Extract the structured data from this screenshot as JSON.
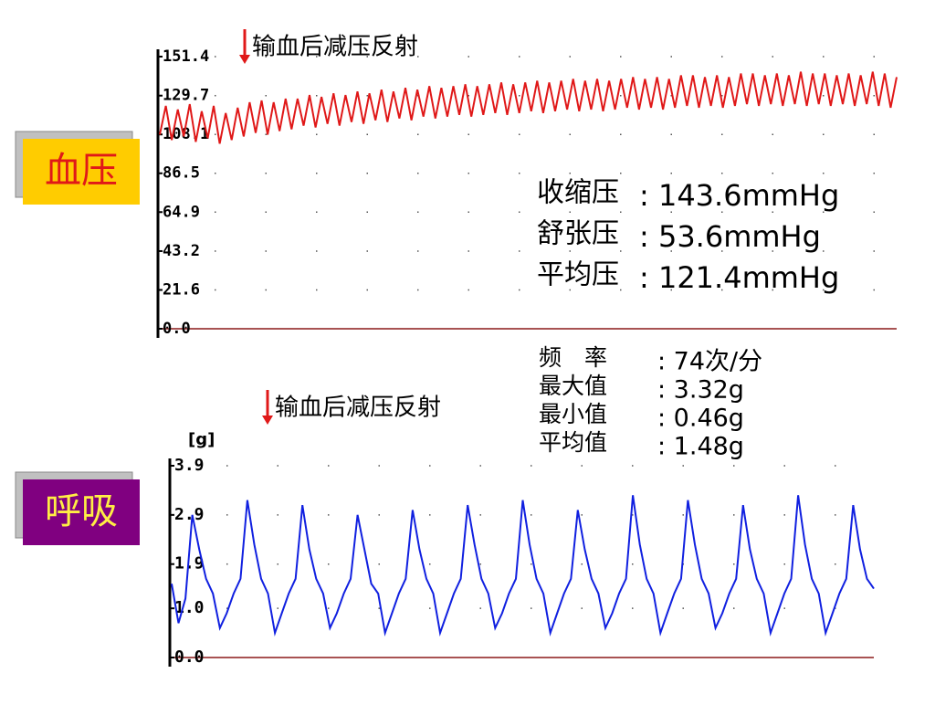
{
  "chart_data": [
    {
      "type": "line",
      "side_label": "血压",
      "annotation": "输血后减压反射",
      "color": "#e01818",
      "ylim": [
        0,
        151.4
      ],
      "yticks": [
        {
          "value": 0,
          "label": "0.0"
        },
        21.6,
        43.2,
        64.9,
        86.5,
        108.1,
        129.7,
        151.4
      ],
      "grid": true,
      "values": [
        108,
        124,
        105,
        122,
        107,
        125,
        104,
        121,
        106,
        124,
        103,
        120,
        105,
        123,
        107,
        126,
        109,
        127,
        108,
        126,
        110,
        128,
        111,
        128,
        113,
        130,
        112,
        129,
        114,
        131,
        113,
        130,
        115,
        132,
        114,
        131,
        116,
        133,
        115,
        132,
        117,
        134,
        116,
        133,
        118,
        135,
        117,
        134,
        118,
        135,
        119,
        136,
        118,
        135,
        119,
        136,
        120,
        137,
        119,
        136,
        120,
        137,
        121,
        138,
        120,
        137,
        121,
        138,
        122,
        139,
        121,
        138,
        122,
        139,
        121,
        138,
        122,
        139,
        123,
        140,
        122,
        139,
        123,
        140,
        122,
        139,
        123,
        141,
        124,
        141,
        123,
        140,
        124,
        141,
        123,
        140,
        124,
        142,
        125,
        142,
        124,
        141,
        125,
        142,
        124,
        141,
        125,
        143,
        124,
        142,
        125,
        142,
        124,
        141,
        125,
        142,
        124,
        141,
        125,
        143,
        124,
        142,
        123,
        140
      ],
      "stats": [
        {
          "label": "收缩压",
          "value": ": 143.6mmHg"
        },
        {
          "label": "舒张压",
          "value": ": 53.6mmHg"
        },
        {
          "label": "平均压",
          "value": ": 121.4mmHg"
        }
      ]
    },
    {
      "type": "line",
      "side_label": "呼吸",
      "annotation": "输血后减压反射",
      "color": "#1020e0",
      "ylabel": "[g]",
      "ylim": [
        0,
        3.9
      ],
      "yticks": [
        {
          "value": 0,
          "label": "0.0"
        },
        {
          "value": 1,
          "label": "1.0"
        },
        1.9,
        2.9,
        3.9
      ],
      "grid": true,
      "values": [
        1.5,
        0.7,
        1.2,
        2.9,
        2.2,
        1.6,
        1.3,
        0.6,
        0.9,
        1.3,
        1.6,
        3.2,
        2.3,
        1.6,
        1.3,
        0.5,
        0.9,
        1.3,
        1.6,
        3.1,
        2.2,
        1.6,
        1.3,
        0.6,
        0.9,
        1.3,
        1.6,
        2.9,
        2.2,
        1.5,
        1.3,
        0.5,
        0.9,
        1.3,
        1.6,
        3.0,
        2.2,
        1.6,
        1.3,
        0.5,
        0.9,
        1.3,
        1.6,
        3.1,
        2.3,
        1.6,
        1.3,
        0.6,
        0.9,
        1.3,
        1.6,
        3.2,
        2.3,
        1.6,
        1.3,
        0.5,
        0.9,
        1.3,
        1.6,
        3.0,
        2.2,
        1.6,
        1.3,
        0.6,
        0.9,
        1.3,
        1.6,
        3.3,
        2.3,
        1.6,
        1.3,
        0.5,
        0.9,
        1.3,
        1.6,
        3.2,
        2.3,
        1.6,
        1.3,
        0.6,
        0.9,
        1.3,
        1.6,
        3.1,
        2.2,
        1.6,
        1.3,
        0.5,
        0.9,
        1.3,
        1.6,
        3.3,
        2.3,
        1.6,
        1.3,
        0.5,
        0.9,
        1.3,
        1.6,
        3.1,
        2.2,
        1.6,
        1.4
      ],
      "stats": [
        {
          "label": "频　率",
          "value": ": 74次/分"
        },
        {
          "label": "最大值",
          "value": ": 3.32g"
        },
        {
          "label": "最小值",
          "value": ": 0.46g"
        },
        {
          "label": "平均值",
          "value": ": 1.48g"
        }
      ]
    }
  ]
}
